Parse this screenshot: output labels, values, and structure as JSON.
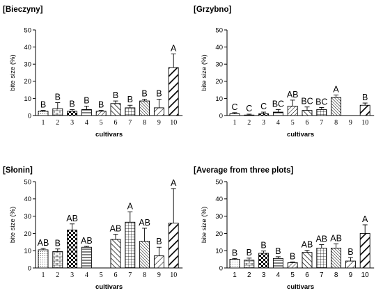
{
  "chart_data": [
    {
      "type": "bar",
      "title": "[Bieczyny]",
      "xlabel": "cultivars",
      "ylabel": "bite size (%)",
      "ylim": [
        0,
        50
      ],
      "yticks": [
        0,
        10,
        20,
        30,
        40,
        50
      ],
      "categories": [
        "1",
        "2",
        "3",
        "4",
        "5",
        "6",
        "7",
        "8",
        "9",
        "10"
      ],
      "values": [
        2.5,
        4,
        2.5,
        3.5,
        2.5,
        7,
        4.5,
        8.5,
        4.5,
        28
      ],
      "errors": [
        0.5,
        3.5,
        1,
        2,
        0.5,
        1.5,
        1.5,
        1,
        5,
        8
      ],
      "letters": [
        "B",
        "B",
        "B",
        "B",
        "B",
        "B",
        "B",
        "B",
        "B",
        "A"
      ]
    },
    {
      "type": "bar",
      "title": "[Grzybno]",
      "xlabel": "cultivars",
      "ylabel": "bite size (%)",
      "ylim": [
        0,
        50
      ],
      "yticks": [
        0,
        10,
        20,
        30,
        40,
        50
      ],
      "categories": [
        "1",
        "2",
        "3",
        "4",
        "5",
        "6",
        "7",
        "8",
        "9",
        "10"
      ],
      "values": [
        1,
        0.3,
        1,
        2,
        5.5,
        3,
        3.5,
        10.5,
        null,
        6
      ],
      "errors": [
        0.7,
        0.5,
        1,
        1.5,
        3.5,
        2,
        1.2,
        1.5,
        null,
        1.3
      ],
      "letters": [
        "C",
        "C",
        "C",
        "BC",
        "AB",
        "BC",
        "BC",
        "A",
        "",
        "B"
      ]
    },
    {
      "type": "bar",
      "title": "[Słonin]",
      "xlabel": "cultivars",
      "ylabel": "bite size (%)",
      "ylim": [
        0,
        50
      ],
      "yticks": [
        0,
        10,
        20,
        30,
        40,
        50
      ],
      "categories": [
        "1",
        "2",
        "3",
        "4",
        "5",
        "6",
        "7",
        "8",
        "9",
        "10"
      ],
      "values": [
        10.5,
        9.5,
        22,
        12,
        null,
        16.5,
        26.5,
        15.5,
        7,
        26
      ],
      "errors": [
        0.8,
        1.5,
        3.5,
        0.5,
        null,
        3,
        6,
        7.5,
        5,
        20
      ],
      "letters": [
        "AB",
        "B",
        "AB",
        "AB",
        "",
        "AB",
        "A",
        "AB",
        "B",
        "A"
      ]
    },
    {
      "type": "bar",
      "title": "[Average from three plots]",
      "xlabel": "cultivars",
      "ylabel": "bite size (%)",
      "ylim": [
        0,
        50
      ],
      "yticks": [
        0,
        10,
        20,
        30,
        40,
        50
      ],
      "categories": [
        "1",
        "2",
        "3",
        "4",
        "5",
        "6",
        "7",
        "8",
        "9",
        "10"
      ],
      "values": [
        5,
        4.5,
        8.5,
        5.5,
        3,
        9,
        11.5,
        11.5,
        4,
        20
      ],
      "errors": [
        0.5,
        1.2,
        1.3,
        1,
        0.5,
        1.2,
        2,
        2.5,
        2,
        5
      ],
      "letters": [
        "B",
        "B",
        "B",
        "B",
        "B",
        "AB",
        "AB",
        "AB",
        "B",
        "A"
      ]
    }
  ]
}
